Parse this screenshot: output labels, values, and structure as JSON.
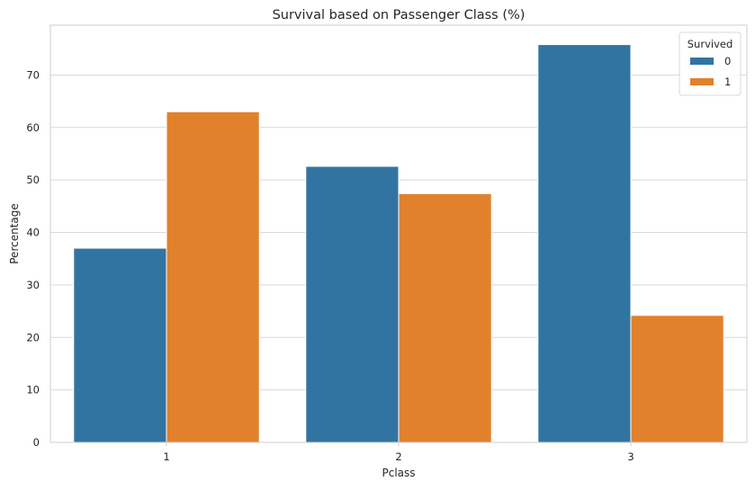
{
  "chart_data": {
    "type": "bar",
    "title": "Survival based on Passenger Class (%)",
    "xlabel": "Pclass",
    "ylabel": "Percentage",
    "categories": [
      "1",
      "2",
      "3"
    ],
    "series": [
      {
        "name": "0",
        "color": "#3274a1",
        "values": [
          37.0,
          52.6,
          75.8
        ]
      },
      {
        "name": "1",
        "color": "#e1812c",
        "values": [
          63.0,
          47.4,
          24.2
        ]
      }
    ],
    "ylim": [
      0,
      79.5
    ],
    "yticks": [
      0,
      10,
      20,
      30,
      40,
      50,
      60,
      70
    ],
    "grid": true,
    "legend": {
      "title": "Survived",
      "placement": "top-right"
    }
  }
}
